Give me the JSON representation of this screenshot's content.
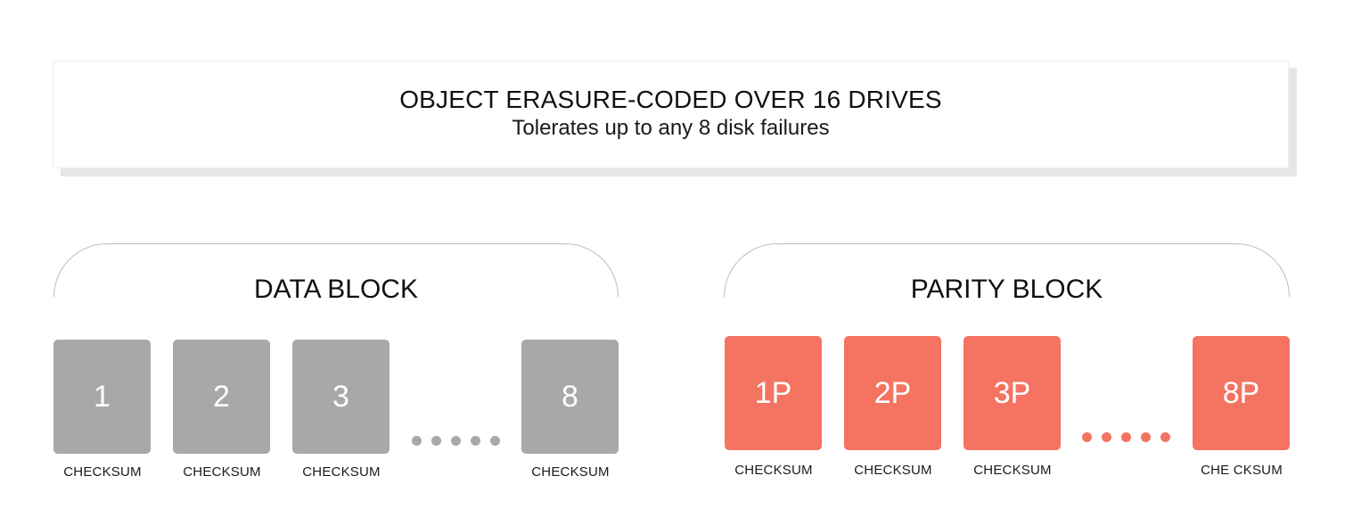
{
  "header": {
    "title": "OBJECT ERASURE-CODED OVER 16 DRIVES",
    "subtitle": "Tolerates up to any 8 disk failures"
  },
  "data_block": {
    "title": "DATA BLOCK",
    "color": "#a8a8a8",
    "drives": [
      {
        "label": "1",
        "checksum": "CHECKSUM"
      },
      {
        "label": "2",
        "checksum": "CHECKSUM"
      },
      {
        "label": "3",
        "checksum": "CHECKSUM"
      },
      {
        "label": "8",
        "checksum": "CHECKSUM"
      }
    ]
  },
  "parity_block": {
    "title": "PARITY BLOCK",
    "color": "#f47361",
    "drives": [
      {
        "label": "1P",
        "checksum": "CHECKSUM"
      },
      {
        "label": "2P",
        "checksum": "CHECKSUM"
      },
      {
        "label": "3P",
        "checksum": "CHECKSUM"
      },
      {
        "label": "8P",
        "checksum": "CHE CKSUM"
      }
    ]
  }
}
